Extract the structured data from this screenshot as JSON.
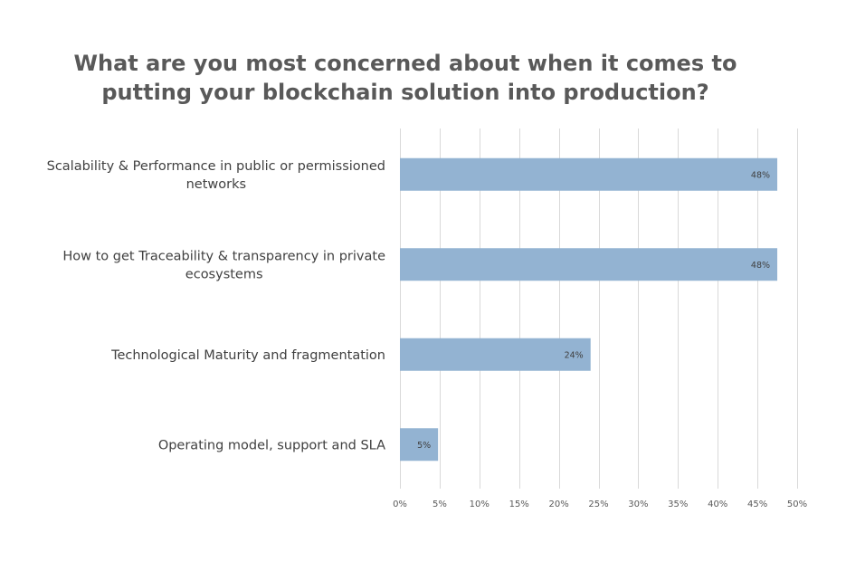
{
  "chart_data": {
    "type": "bar",
    "orientation": "horizontal",
    "title_lines": [
      "What are you most concerned about when it comes to",
      "putting your blockchain solution into production?"
    ],
    "categories": [
      [
        "Scalability & Performance in public or permissioned",
        "networks"
      ],
      [
        "How to get Traceability & transparency in private",
        "ecosystems"
      ],
      [
        "Technological Maturity and fragmentation"
      ],
      [
        "Operating model, support and SLA"
      ]
    ],
    "values": [
      0.475,
      0.475,
      0.24,
      0.048
    ],
    "data_labels": [
      "48%",
      "48%",
      "24%",
      "5%"
    ],
    "xlim": [
      0,
      0.5
    ],
    "xticks": [
      0,
      0.05,
      0.1,
      0.15,
      0.2,
      0.25,
      0.3,
      0.35,
      0.4,
      0.45,
      0.5
    ],
    "xtick_labels": [
      "0%",
      "5%",
      "10%",
      "15%",
      "20%",
      "25%",
      "30%",
      "35%",
      "40%",
      "45%",
      "50%"
    ],
    "grid": "vertical",
    "legend": "none",
    "colors": {
      "bar": "#93b3d2",
      "grid": "#d9d9d9",
      "title": "#595959",
      "text": "#404040"
    }
  }
}
